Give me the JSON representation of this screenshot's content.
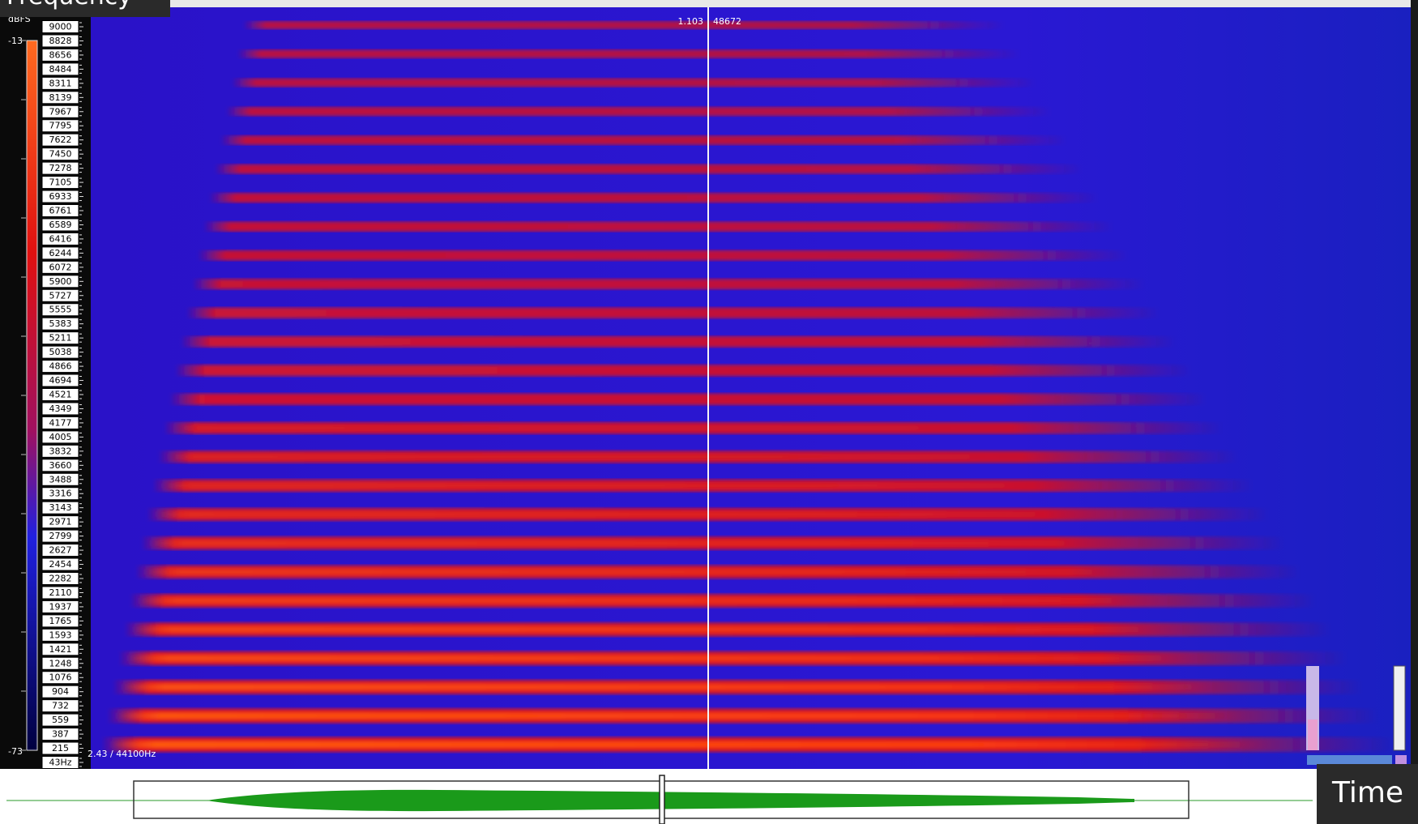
{
  "header": {
    "panel_label": "Frequency",
    "axis_label": "Time"
  },
  "colorbar": {
    "unit": "dBFS",
    "max_label": "-13",
    "min_label": "-73"
  },
  "frequency_labels": [
    "9000",
    "8828",
    "8656",
    "8484",
    "8311",
    "8139",
    "7967",
    "7795",
    "7622",
    "7450",
    "7278",
    "7105",
    "6933",
    "6761",
    "6589",
    "6416",
    "6244",
    "6072",
    "5900",
    "5727",
    "5555",
    "5383",
    "5211",
    "5038",
    "4866",
    "4694",
    "4521",
    "4349",
    "4177",
    "4005",
    "3832",
    "3660",
    "3488",
    "3316",
    "3143",
    "2971",
    "2799",
    "2627",
    "2454",
    "2282",
    "2110",
    "1937",
    "1765",
    "1593",
    "1421",
    "1248",
    "1076",
    "904",
    "732",
    "559",
    "387",
    "215",
    "43Hz"
  ],
  "cursor": {
    "time": "1.103",
    "sample": "48672"
  },
  "status": "2.43 / 44100Hz"
}
